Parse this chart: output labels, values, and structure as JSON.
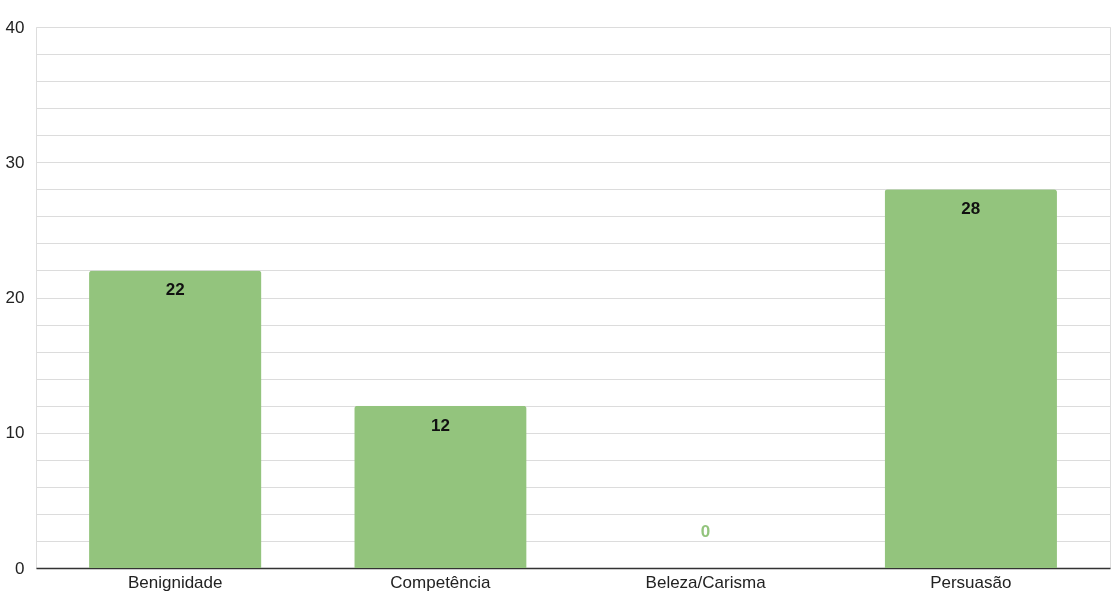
{
  "chart_data": {
    "type": "bar",
    "categories": [
      "Benignidade",
      "Competência",
      "Beleza/Carisma",
      "Persuasão"
    ],
    "values": [
      22,
      12,
      0,
      28
    ],
    "color": "#93c47d",
    "ylim": [
      0,
      40
    ],
    "yticks": [
      0,
      {
        "value": 2,
        "label": null
      },
      {
        "value": 4,
        "label": null
      },
      {
        "value": 6,
        "label": null
      },
      {
        "value": 8,
        "label": null
      },
      10,
      {
        "value": 12,
        "label": null
      },
      {
        "value": 14,
        "label": null
      },
      {
        "value": 16,
        "label": null
      },
      {
        "value": 18,
        "label": null
      },
      20,
      {
        "value": 22,
        "label": null
      },
      {
        "value": 24,
        "label": null
      },
      {
        "value": 26,
        "label": null
      },
      {
        "value": 28,
        "label": null
      },
      30,
      {
        "value": 32,
        "label": null
      },
      {
        "value": 34,
        "label": null
      },
      {
        "value": 36,
        "label": null
      },
      {
        "value": 38,
        "label": null
      },
      40
    ],
    "grid": "y",
    "data_labels": true
  }
}
